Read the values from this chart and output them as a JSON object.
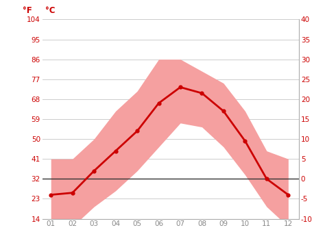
{
  "months": [
    1,
    2,
    3,
    4,
    5,
    6,
    7,
    8,
    9,
    10,
    11,
    12
  ],
  "month_labels": [
    "01",
    "02",
    "03",
    "04",
    "05",
    "06",
    "07",
    "08",
    "09",
    "10",
    "11",
    "12"
  ],
  "avg_temp_c": [
    -4,
    -3.5,
    2,
    7,
    12,
    19,
    23,
    21.5,
    17,
    9.5,
    0,
    -4
  ],
  "max_temp_c": [
    5,
    5,
    10,
    17,
    22,
    30,
    30,
    27,
    24,
    17,
    7,
    5
  ],
  "min_temp_c": [
    -13,
    -12,
    -7,
    -3,
    2,
    8,
    14,
    13,
    8,
    1,
    -7,
    -12
  ],
  "line_color": "#cc0000",
  "band_color": "#f5a0a0",
  "zero_line_color": "#333333",
  "axis_color": "#cc0000",
  "tick_color": "#888888",
  "grid_color": "#cccccc",
  "background_color": "#ffffff",
  "ylim_c": [
    -10,
    40
  ],
  "yticks_c": [
    -10,
    -5,
    0,
    5,
    10,
    15,
    20,
    25,
    30,
    35,
    40
  ],
  "yticks_f": [
    14,
    23,
    32,
    41,
    50,
    59,
    68,
    77,
    86,
    95,
    104
  ],
  "ylabel_left": "°F",
  "ylabel_right": "°C",
  "figsize": [
    4.74,
    3.55
  ],
  "dpi": 100
}
